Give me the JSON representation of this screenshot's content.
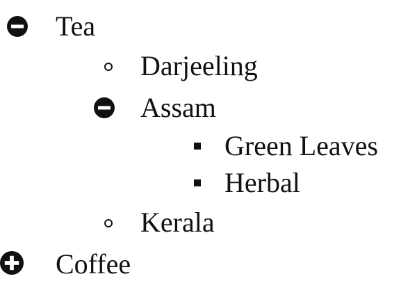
{
  "tree": {
    "tea": {
      "label": "Tea",
      "state": "expanded",
      "children": {
        "darjeeling": {
          "label": "Darjeeling"
        },
        "assam": {
          "label": "Assam",
          "state": "expanded",
          "children": {
            "green_leaves": {
              "label": "Green Leaves"
            },
            "herbal": {
              "label": "Herbal"
            }
          }
        },
        "kerala": {
          "label": "Kerala"
        }
      }
    },
    "coffee": {
      "label": "Coffee",
      "state": "collapsed"
    }
  },
  "icons": {
    "expanded": "minus-circle-icon",
    "collapsed": "plus-circle-icon",
    "level2_bullet": "circle-bullet-icon",
    "level3_bullet": "square-bullet-icon"
  },
  "colors": {
    "text": "#111111",
    "icon": "#111111",
    "background": "#ffffff"
  }
}
